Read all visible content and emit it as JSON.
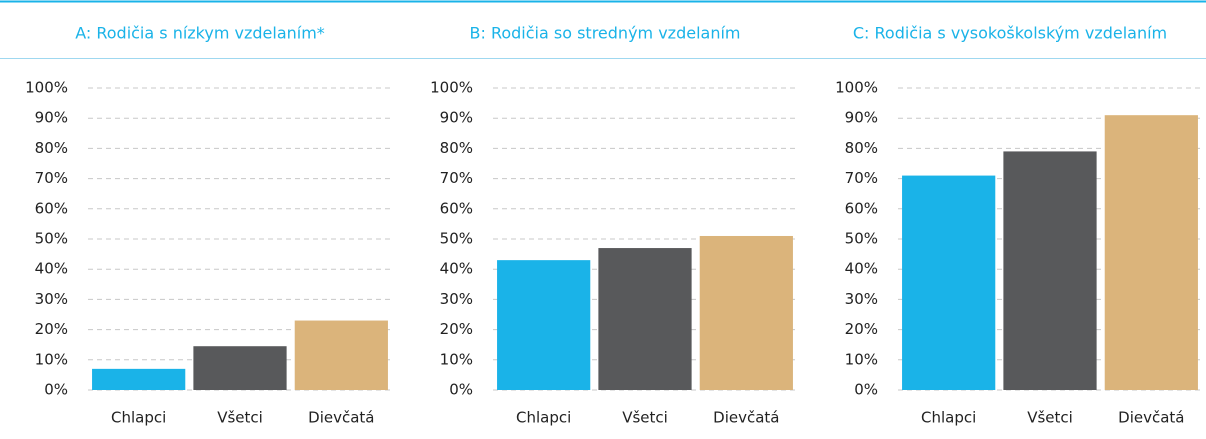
{
  "chart_data": [
    {
      "type": "bar",
      "title": "A: Rodičia s nízkym vzdelaním*",
      "categories": [
        "Chlapci",
        "Všetci",
        "Dievčatá"
      ],
      "values": [
        7,
        14.5,
        23
      ],
      "colors": [
        "#1ab3e8",
        "#58595b",
        "#dbb47b"
      ],
      "ylim": [
        0,
        100
      ],
      "yticks": [
        {
          "value": 0,
          "label": "0%"
        },
        {
          "value": 10,
          "label": "10%"
        },
        {
          "value": 20,
          "label": "20%"
        },
        {
          "value": 30,
          "label": "30%"
        },
        {
          "value": 40,
          "label": "40%"
        },
        {
          "value": 50,
          "label": "50%"
        },
        {
          "value": 60,
          "label": "60%"
        },
        {
          "value": 70,
          "label": "70%"
        },
        {
          "value": 80,
          "label": "80%"
        },
        {
          "value": 90,
          "label": "90%"
        },
        {
          "value": 100,
          "label": "100%"
        }
      ],
      "grid": true
    },
    {
      "type": "bar",
      "title": "B: Rodičia so stredným vzdelaním",
      "categories": [
        "Chlapci",
        "Všetci",
        "Dievčatá"
      ],
      "values": [
        43,
        47,
        51
      ],
      "colors": [
        "#1ab3e8",
        "#58595b",
        "#dbb47b"
      ],
      "ylim": [
        0,
        100
      ],
      "yticks": [
        {
          "value": 0,
          "label": "0%"
        },
        {
          "value": 10,
          "label": "10%"
        },
        {
          "value": 20,
          "label": "20%"
        },
        {
          "value": 30,
          "label": "30%"
        },
        {
          "value": 40,
          "label": "40%"
        },
        {
          "value": 50,
          "label": "50%"
        },
        {
          "value": 60,
          "label": "60%"
        },
        {
          "value": 70,
          "label": "70%"
        },
        {
          "value": 80,
          "label": "80%"
        },
        {
          "value": 90,
          "label": "90%"
        },
        {
          "value": 100,
          "label": "100%"
        }
      ],
      "grid": true
    },
    {
      "type": "bar",
      "title": "C: Rodičia s vysokoškolským vzdelaním",
      "categories": [
        "Chlapci",
        "Všetci",
        "Dievčatá"
      ],
      "values": [
        71,
        79,
        91
      ],
      "colors": [
        "#1ab3e8",
        "#58595b",
        "#dbb47b"
      ],
      "ylim": [
        0,
        100
      ],
      "yticks": [
        {
          "value": 0,
          "label": "0%"
        },
        {
          "value": 10,
          "label": "10%"
        },
        {
          "value": 20,
          "label": "20%"
        },
        {
          "value": 30,
          "label": "30%"
        },
        {
          "value": 40,
          "label": "40%"
        },
        {
          "value": 50,
          "label": "50%"
        },
        {
          "value": 60,
          "label": "60%"
        },
        {
          "value": 70,
          "label": "70%"
        },
        {
          "value": 80,
          "label": "80%"
        },
        {
          "value": 90,
          "label": "90%"
        },
        {
          "value": 100,
          "label": "100%"
        }
      ],
      "grid": true
    }
  ]
}
